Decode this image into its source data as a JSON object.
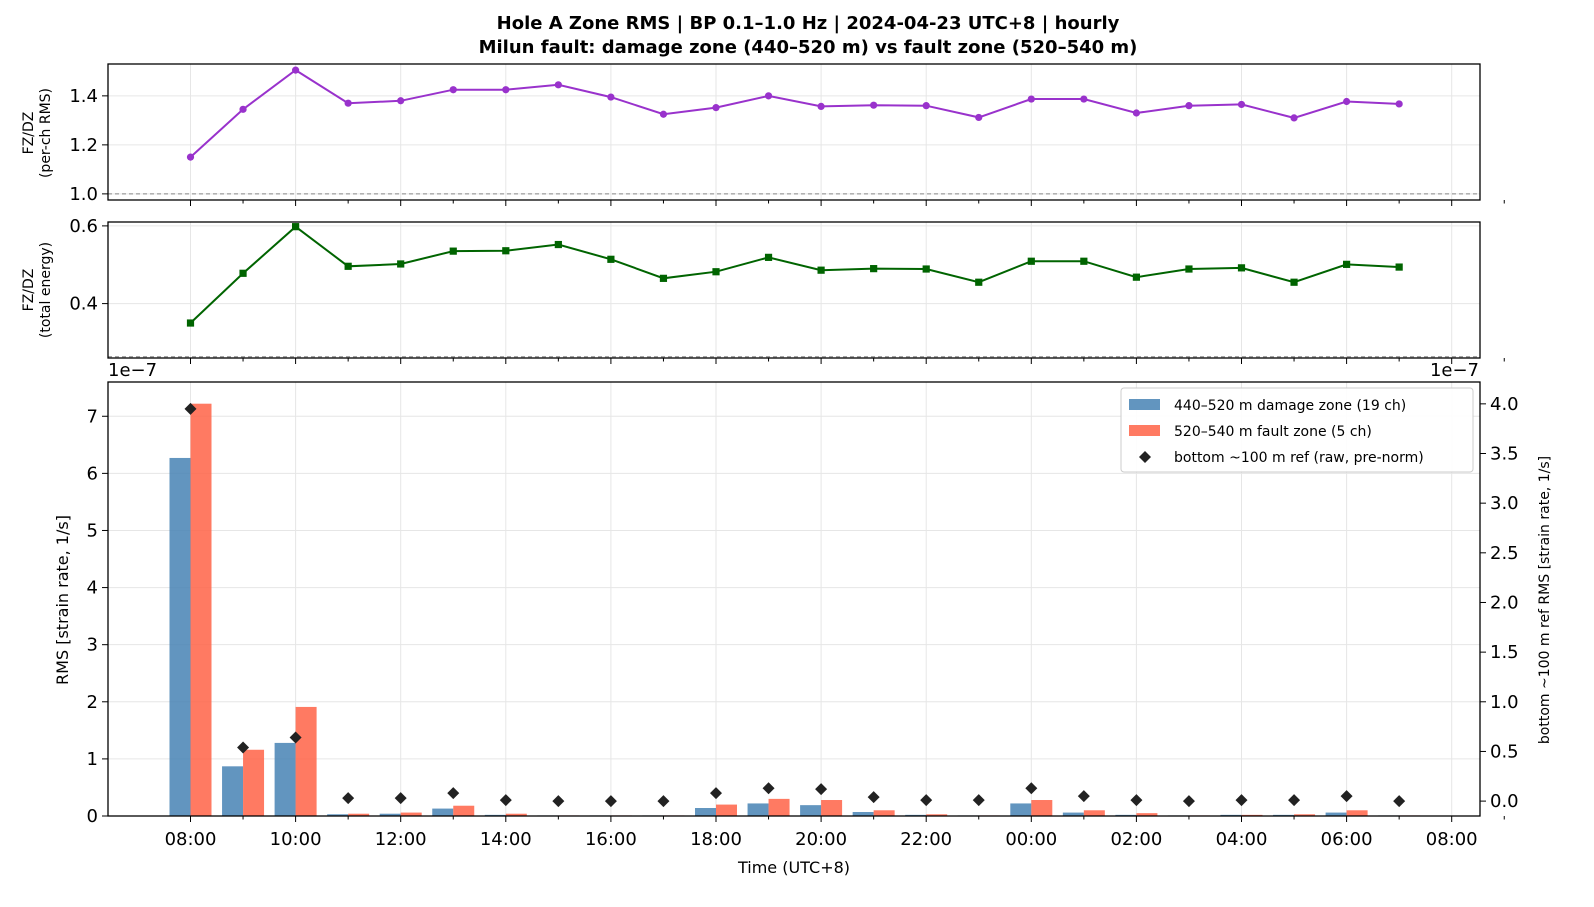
{
  "chart_data": [
    {
      "type": "line",
      "title_line1": "Hole A Zone RMS  |  BP 0.1–1.0 Hz  |  2024-04-23 UTC+8  |  hourly",
      "title_line2": "Milun fault: damage zone (440–520 m) vs fault zone (520–540 m)",
      "ylabel_line1": "FZ/DZ",
      "ylabel_line2": "(per-ch RMS)",
      "ylim": [
        0.975,
        1.53
      ],
      "yticks": [
        "1.0",
        "1.2",
        "1.4"
      ],
      "reference_line": 1.0,
      "color": "#9932CC",
      "marker": "circle",
      "x": [
        "08:00",
        "09:00",
        "10:00",
        "11:00",
        "12:00",
        "13:00",
        "14:00",
        "15:00",
        "16:00",
        "17:00",
        "18:00",
        "19:00",
        "20:00",
        "21:00",
        "22:00",
        "23:00",
        "00:00",
        "01:00",
        "02:00",
        "03:00",
        "04:00",
        "05:00",
        "06:00",
        "07:00"
      ],
      "values": [
        1.15,
        1.345,
        1.505,
        1.37,
        1.38,
        1.425,
        1.425,
        1.445,
        1.395,
        1.325,
        1.352,
        1.4,
        1.357,
        1.362,
        1.36,
        1.312,
        1.387,
        1.387,
        1.33,
        1.36,
        1.365,
        1.31,
        1.377,
        1.367
      ]
    },
    {
      "type": "line",
      "ylabel_line1": "FZ/DZ",
      "ylabel_line2": "(total energy)",
      "ylim": [
        0.26,
        0.61
      ],
      "yticks": [
        "0.4",
        "0.6"
      ],
      "reference_line": 0.2632,
      "color": "#006400",
      "marker": "square",
      "x": [
        "08:00",
        "09:00",
        "10:00",
        "11:00",
        "12:00",
        "13:00",
        "14:00",
        "15:00",
        "16:00",
        "17:00",
        "18:00",
        "19:00",
        "20:00",
        "21:00",
        "22:00",
        "23:00",
        "00:00",
        "01:00",
        "02:00",
        "03:00",
        "04:00",
        "05:00",
        "06:00",
        "07:00"
      ],
      "values": [
        0.35,
        0.478,
        0.598,
        0.496,
        0.502,
        0.535,
        0.536,
        0.552,
        0.514,
        0.465,
        0.482,
        0.519,
        0.486,
        0.49,
        0.489,
        0.455,
        0.509,
        0.509,
        0.468,
        0.489,
        0.492,
        0.455,
        0.501,
        0.494
      ]
    },
    {
      "type": "bar",
      "xlabel": "Time (UTC+8)",
      "ylabel": "RMS  [strain rate, 1/s]",
      "ylabel_right": "bottom ~100 m ref RMS  [strain rate, 1/s]",
      "offset_left": "1e−7",
      "offset_right": "1e−7",
      "ylim": [
        0,
        7.6
      ],
      "ylim_right": [
        -0.15,
        4.22
      ],
      "yticks": [
        "0",
        "1",
        "2",
        "3",
        "4",
        "5",
        "6",
        "7"
      ],
      "yticks_right": [
        "0.0",
        "0.5",
        "1.0",
        "1.5",
        "2.0",
        "2.5",
        "3.0",
        "3.5",
        "4.0"
      ],
      "xtick_labels": [
        "08:00",
        "10:00",
        "12:00",
        "14:00",
        "16:00",
        "18:00",
        "20:00",
        "22:00",
        "00:00",
        "02:00",
        "04:00",
        "06:00",
        "08:00"
      ],
      "categories": [
        "08:00",
        "09:00",
        "10:00",
        "11:00",
        "12:00",
        "13:00",
        "14:00",
        "15:00",
        "16:00",
        "17:00",
        "18:00",
        "19:00",
        "20:00",
        "21:00",
        "22:00",
        "23:00",
        "00:00",
        "01:00",
        "02:00",
        "03:00",
        "04:00",
        "05:00",
        "06:00",
        "07:00"
      ],
      "series": [
        {
          "name": "440–520 m  damage zone (19 ch)",
          "color": "#4682B4",
          "values": [
            6.27,
            0.87,
            1.28,
            0.03,
            0.04,
            0.13,
            0.02,
            0.01,
            0.01,
            0.01,
            0.14,
            0.22,
            0.19,
            0.07,
            0.02,
            0.01,
            0.22,
            0.06,
            0.02,
            0.01,
            0.02,
            0.02,
            0.06,
            0.01
          ]
        },
        {
          "name": "520–540 m  fault zone (5 ch)",
          "color": "#FF6347",
          "values": [
            7.22,
            1.16,
            1.91,
            0.04,
            0.06,
            0.18,
            0.04,
            0.01,
            0.01,
            0.01,
            0.2,
            0.3,
            0.28,
            0.1,
            0.03,
            0.01,
            0.28,
            0.1,
            0.05,
            0.01,
            0.02,
            0.03,
            0.1,
            0.01
          ]
        },
        {
          "name": "bottom ~100 m ref (raw, pre-norm)",
          "color": "#222222",
          "marker": "diamond",
          "axis": "right",
          "values": [
            3.95,
            0.54,
            0.64,
            0.03,
            0.03,
            0.08,
            0.01,
            0.0,
            0.0,
            0.0,
            0.08,
            0.13,
            0.12,
            0.04,
            0.01,
            0.01,
            0.13,
            0.05,
            0.01,
            0.0,
            0.01,
            0.01,
            0.05,
            0.0
          ]
        }
      ],
      "legend_position": "top-right",
      "grid": true
    }
  ]
}
